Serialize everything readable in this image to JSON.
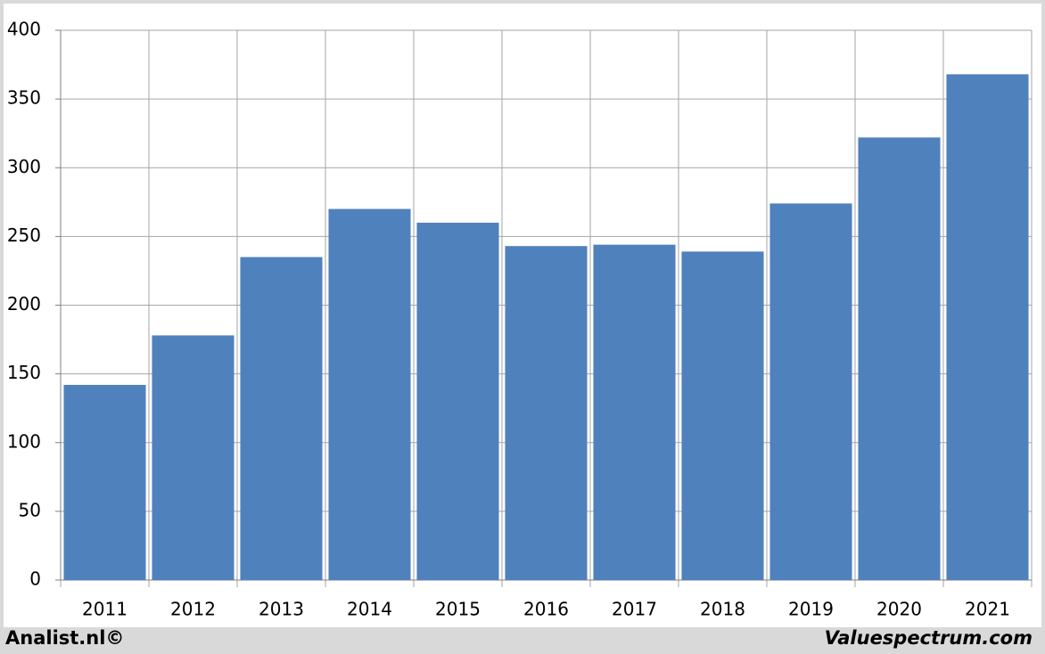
{
  "chart_data": {
    "type": "bar",
    "categories": [
      "2011",
      "2012",
      "2013",
      "2014",
      "2015",
      "2016",
      "2017",
      "2018",
      "2019",
      "2020",
      "2021"
    ],
    "values": [
      142,
      178,
      235,
      270,
      260,
      243,
      244,
      239,
      274,
      322,
      368
    ],
    "color": "#4f81bd",
    "ylim": [
      0,
      400
    ],
    "yticks": [
      0,
      50,
      100,
      150,
      200,
      250,
      300,
      350,
      400
    ],
    "grid": true
  },
  "footer": {
    "left": "Analist.nl©",
    "right": "Valuespectrum.com"
  }
}
